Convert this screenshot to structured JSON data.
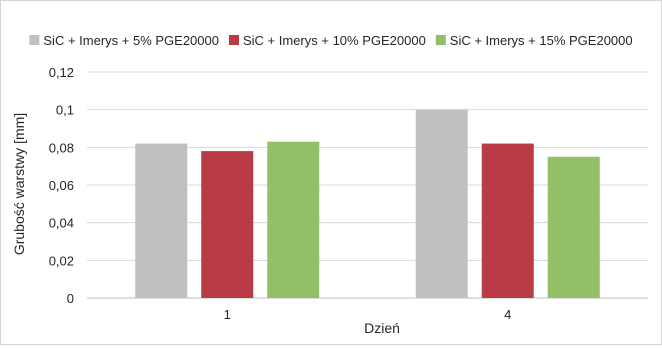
{
  "chart_data": {
    "type": "bar",
    "title": "",
    "xlabel": "Dzień",
    "ylabel": "Grubość warstwy [mm]",
    "categories": [
      "1",
      "4"
    ],
    "ylim": [
      0,
      0.12
    ],
    "yticks": [
      "0",
      "0,02",
      "0,04",
      "0,06",
      "0,08",
      "0,1",
      "0,12"
    ],
    "ytick_values": [
      0,
      0.02,
      0.04,
      0.06,
      0.08,
      0.1,
      0.12
    ],
    "grid": true,
    "legend_position": "top",
    "series": [
      {
        "name": "SiC + Imerys + 5% PGE20000",
        "color": "#c0c0c0",
        "values": [
          0.082,
          0.1
        ]
      },
      {
        "name": "SiC + Imerys + 10% PGE20000",
        "color": "#b83b46",
        "values": [
          0.078,
          0.082
        ]
      },
      {
        "name": "SiC + Imerys + 15% PGE20000",
        "color": "#93bf66",
        "values": [
          0.083,
          0.075
        ]
      }
    ]
  }
}
